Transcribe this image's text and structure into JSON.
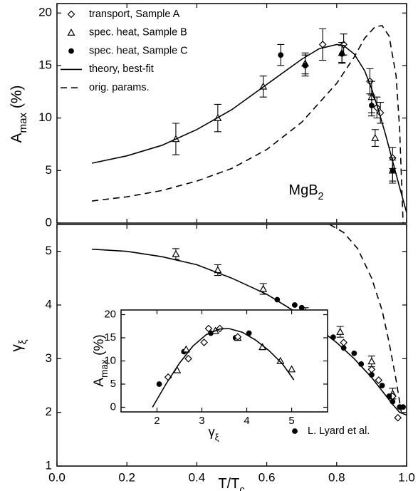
{
  "chart_data": [
    {
      "type": "line",
      "ylabel": {
        "text": "A",
        "sub": "max",
        "after": " (%)"
      },
      "annotation": {
        "text": "MgB",
        "sub": "2"
      },
      "xlim": [
        0,
        1
      ],
      "ylim": [
        0,
        20.9
      ],
      "xticks": [
        0,
        0.2,
        0.4,
        0.6,
        0.8,
        1
      ],
      "xtick_labels": false,
      "yticks": [
        0,
        5,
        10,
        15,
        20
      ],
      "legend": "upper left",
      "series": [
        {
          "name": "transport, Sample A",
          "kind": "markers",
          "marker": "diamond",
          "color": "#000",
          "x": [
            0.76,
            0.82,
            0.895,
            0.915,
            0.925,
            0.96
          ],
          "y": [
            17.0,
            17.0,
            13.5,
            11.0,
            10.5,
            6.2
          ],
          "errors": [
            1.5,
            1.0,
            1.2,
            1.0,
            1.0,
            1.0
          ]
        },
        {
          "name": "spec. heat, Sample B",
          "kind": "markers",
          "marker": "triangle",
          "color": "#000",
          "x": [
            0.34,
            0.46,
            0.59,
            0.71,
            0.815,
            0.9,
            0.91,
            0.96
          ],
          "y": [
            8.0,
            10.0,
            13.0,
            15.2,
            16.2,
            12.0,
            8.1,
            5.0
          ],
          "errors": [
            1.5,
            1.3,
            1.0,
            1.0,
            1.0,
            1.5,
            0.8,
            1.2
          ]
        },
        {
          "name": "spec. heat, Sample C",
          "kind": "markers",
          "marker": "circle",
          "color": "#000",
          "x": [
            0.64,
            0.71,
            0.815,
            0.9,
            0.96
          ],
          "y": [
            16.0,
            15.0,
            16.1,
            11.2,
            5.0
          ],
          "errors": [
            1.0,
            1.0,
            0.8,
            1.0,
            1.0
          ]
        },
        {
          "name": "theory, best-fit",
          "kind": "line",
          "dash": false,
          "color": "#000",
          "x": [
            0.1,
            0.2,
            0.3,
            0.4,
            0.5,
            0.6,
            0.7,
            0.75,
            0.8,
            0.82,
            0.85,
            0.88,
            0.9,
            0.92,
            0.94,
            0.96,
            0.98,
            1.0
          ],
          "y": [
            5.7,
            6.4,
            7.4,
            8.9,
            10.8,
            13.2,
            15.6,
            16.6,
            17.0,
            16.9,
            16.1,
            14.5,
            12.8,
            10.7,
            8.4,
            5.9,
            3.4,
            1.0
          ]
        },
        {
          "name": "orig. params.",
          "kind": "line",
          "dash": true,
          "color": "#000",
          "x": [
            0.1,
            0.2,
            0.3,
            0.4,
            0.5,
            0.6,
            0.7,
            0.8,
            0.85,
            0.88,
            0.91,
            0.93,
            0.95,
            0.97,
            0.98,
            0.99
          ],
          "y": [
            2.1,
            2.5,
            3.1,
            4.0,
            5.2,
            7.0,
            9.6,
            13.3,
            15.8,
            17.6,
            18.7,
            18.8,
            17.8,
            14.0,
            9.0,
            0.0
          ]
        }
      ]
    },
    {
      "type": "line",
      "ylabel": {
        "text": "γ",
        "sub": "ξ"
      },
      "xlabel": {
        "text": "T/T",
        "sub": "c"
      },
      "xlim": [
        0,
        1
      ],
      "ylim": [
        1,
        5.5
      ],
      "xticks": [
        {
          "value": 0,
          "label": "0.0"
        },
        0.2,
        0.4,
        0.6,
        0.8,
        {
          "value": 1,
          "label": "1.0"
        }
      ],
      "yticks": [
        1,
        2,
        3,
        4,
        5
      ],
      "legend": "lower right",
      "series": [
        {
          "kind": "markers",
          "marker": "triangle",
          "color": "#000",
          "x": [
            0.34,
            0.46,
            0.59,
            0.71,
            0.81,
            0.9,
            0.96
          ],
          "y": [
            4.95,
            4.65,
            4.3,
            3.85,
            3.5,
            2.95,
            2.35
          ],
          "errors": [
            0.1,
            0.1,
            0.1,
            0.1,
            0.1,
            0.1,
            0.1
          ]
        },
        {
          "kind": "markers",
          "marker": "diamond",
          "color": "#000",
          "x": [
            0.76,
            0.82,
            0.9,
            0.92,
            0.96,
            0.975
          ],
          "y": [
            3.4,
            3.3,
            2.8,
            2.6,
            2.3,
            1.9
          ]
        },
        {
          "name": "L. Lyard et al.",
          "kind": "markers",
          "marker": "circle",
          "color": "#000",
          "x": [
            0.63,
            0.68,
            0.7,
            0.72,
            0.75,
            0.79,
            0.82,
            0.85,
            0.87,
            0.9,
            0.93,
            0.95,
            0.96,
            0.98,
            0.99
          ],
          "y": [
            4.1,
            4.0,
            3.95,
            3.75,
            3.65,
            3.4,
            3.2,
            3.1,
            2.9,
            2.7,
            2.5,
            2.3,
            2.2,
            2.1,
            2.1
          ]
        },
        {
          "kind": "line",
          "dash": false,
          "color": "#000",
          "x": [
            0.1,
            0.2,
            0.3,
            0.4,
            0.5,
            0.6,
            0.7,
            0.8,
            0.85,
            0.9,
            0.93,
            0.96,
            0.98,
            1.0
          ],
          "y": [
            5.04,
            5.0,
            4.9,
            4.75,
            4.5,
            4.2,
            3.8,
            3.3,
            3.0,
            2.65,
            2.4,
            2.15,
            2.0,
            1.95
          ]
        },
        {
          "kind": "line",
          "dash": true,
          "color": "#000",
          "x": [
            0.78,
            0.82,
            0.86,
            0.9,
            0.93,
            0.95,
            0.97,
            0.985
          ],
          "y": [
            5.5,
            5.35,
            5.05,
            4.5,
            3.9,
            3.3,
            2.6,
            2.0
          ]
        }
      ]
    },
    {
      "type": "line",
      "xlabel": {
        "text": "γ",
        "sub": "ξ"
      },
      "ylabel": {
        "text": "A",
        "sub": "max",
        "after": " (%)"
      },
      "xlim": [
        1.2,
        5.8
      ],
      "ylim": [
        -1,
        21
      ],
      "xticks": [
        2,
        3,
        4,
        5
      ],
      "yticks": [
        0,
        5,
        10,
        15,
        20
      ],
      "series": [
        {
          "kind": "markers",
          "marker": "circle",
          "color": "#000",
          "x": [
            2.05,
            2.6,
            3.2,
            3.75,
            4.05
          ],
          "y": [
            5.0,
            12.0,
            16.0,
            15.0,
            16.0
          ]
        },
        {
          "kind": "markers",
          "marker": "triangle",
          "color": "#000",
          "x": [
            2.45,
            2.65,
            3.3,
            3.8,
            4.35,
            4.75,
            5.0
          ],
          "y": [
            8.0,
            12.5,
            16.5,
            15.0,
            13.0,
            10.0,
            8.2
          ]
        },
        {
          "kind": "markers",
          "marker": "diamond",
          "color": "#000",
          "x": [
            2.25,
            2.7,
            3.05,
            3.15,
            3.4,
            3.8
          ],
          "y": [
            6.5,
            10.5,
            14.0,
            17.0,
            17.0,
            15.2
          ]
        },
        {
          "kind": "line",
          "dash": false,
          "color": "#000",
          "x": [
            1.9,
            2.2,
            2.5,
            2.8,
            3.1,
            3.4,
            3.6,
            3.9,
            4.2,
            4.5,
            4.8,
            5.05
          ],
          "y": [
            0.0,
            5.0,
            9.5,
            13.2,
            15.7,
            16.9,
            17.0,
            16.2,
            14.5,
            12.2,
            9.3,
            5.9
          ]
        }
      ]
    }
  ]
}
